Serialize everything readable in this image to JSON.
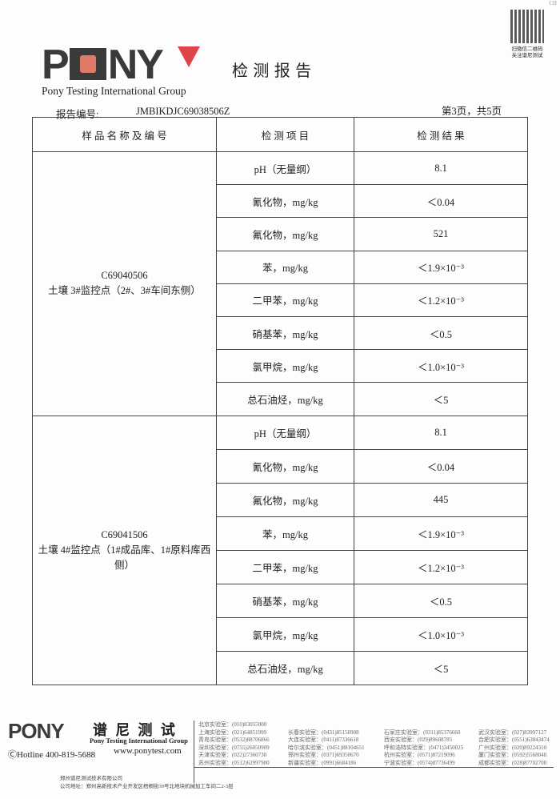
{
  "header": {
    "logo_text": "PONY",
    "company_en": "Pony Testing International Group",
    "title": "检 测 报 告",
    "qr_caption": [
      "扫微信二维码",
      "关注谱尼测试"
    ],
    "corner": "CH",
    "report_no_label": "报告编号:",
    "report_no": "JMBIKDJC69038506Z",
    "page_info": "第3页，共5页"
  },
  "table": {
    "headers": [
      "样 品 名 称 及 编 号",
      "检 测 项 目",
      "检 测 结 果"
    ],
    "samples": [
      {
        "code": "C69040506",
        "name": "土壤 3#监控点（2#、3#车间东侧）",
        "rows": [
          [
            "pH（无量纲）",
            "8.1"
          ],
          [
            "氰化物，mg/kg",
            "＜0.04"
          ],
          [
            "氟化物，mg/kg",
            "521"
          ],
          [
            "苯，mg/kg",
            "＜1.9×10⁻³"
          ],
          [
            "二甲苯，mg/kg",
            "＜1.2×10⁻³"
          ],
          [
            "硝基苯，mg/kg",
            "＜0.5"
          ],
          [
            "氯甲烷，mg/kg",
            "＜1.0×10⁻³"
          ],
          [
            "总石油烃，mg/kg",
            "＜5"
          ]
        ]
      },
      {
        "code": "C69041506",
        "name": "土壤 4#监控点（1#成品库、1#原料库西侧）",
        "rows": [
          [
            "pH（无量纲）",
            "8.1"
          ],
          [
            "氰化物，mg/kg",
            "＜0.04"
          ],
          [
            "氟化物，mg/kg",
            "445"
          ],
          [
            "苯，mg/kg",
            "＜1.9×10⁻³"
          ],
          [
            "二甲苯，mg/kg",
            "＜1.2×10⁻³"
          ],
          [
            "硝基苯，mg/kg",
            "＜0.5"
          ],
          [
            "氯甲烷，mg/kg",
            "＜1.0×10⁻³"
          ],
          [
            "总石油烃，mg/kg",
            "＜5"
          ]
        ]
      }
    ]
  },
  "footer": {
    "logo_text": "PONY",
    "logo_cn": "谱 尼 测 试",
    "company_en": "Pony Testing International Group",
    "hotline": "ⒸHotline 400-819-5688",
    "website": "www.ponytest.com",
    "labs": [
      [
        "北京实验室：(010)83055000",
        "",
        "",
        ""
      ],
      [
        "上海实验室：(021)64851999",
        "长春实验室：(0431)85150908",
        "石家庄实验室：(0311)85376660",
        "武汉实验室：(027)83997127"
      ],
      [
        "青岛实验室：(0532)88706866",
        "大连实验室：(0411)87336618",
        "西安实验室：(029)89608785",
        "合肥实验室：(0551)63843474"
      ],
      [
        "深圳实验室：(0755)26050909",
        "哈尔滨实验室：(0451)88104651",
        "呼和浩特实验室：(0471)3450025",
        "广州实验室：(020)89224310"
      ],
      [
        "天津实验室：(022)27360730",
        "郑州实验室：(0371)69350670",
        "杭州实验室：(0571)87219096",
        "厦门实验室：(0592)5568048"
      ],
      [
        "苏州实验室：(0512)62997900",
        "新疆实验室：(0991)6684186",
        "宁波实验室：(0574)87736499",
        "成都实验室：(028)87702708"
      ]
    ],
    "company_cn": "郑州谱尼测试技术有限公司",
    "address": "公司地址：郑州高新技术产业开发区梧桐街39号北地块机械加工车间二2-3层"
  }
}
